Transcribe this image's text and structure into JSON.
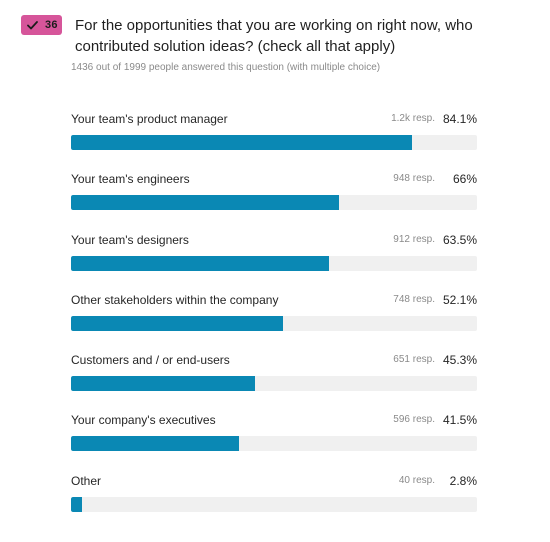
{
  "badge": {
    "count": "36",
    "icon": "check-icon",
    "color": "#d6559a"
  },
  "question": {
    "text": "For the opportunities that you are working on right now, who contributed solution ideas? (check all that apply)"
  },
  "summary": {
    "text": "1436 out of 1999 people answered this question (with multiple choice)"
  },
  "colors": {
    "bar": "#0a88b4",
    "track": "#f0f0f0"
  },
  "chart_data": {
    "type": "bar",
    "orientation": "horizontal",
    "categories": [
      "Your team's product manager",
      "Your team's engineers",
      "Your team's designers",
      "Other stakeholders within the company",
      "Customers and / or end-users",
      "Your company's executives",
      "Other"
    ],
    "responses": [
      "1.2k resp.",
      "948 resp.",
      "912 resp.",
      "748 resp.",
      "651 resp.",
      "596 resp.",
      "40 resp."
    ],
    "percent_labels": [
      "84.1%",
      "66%",
      "63.5%",
      "52.1%",
      "45.3%",
      "41.5%",
      "2.8%"
    ],
    "values": [
      84.1,
      66,
      63.5,
      52.1,
      45.3,
      41.5,
      2.8
    ],
    "xlim": [
      0,
      100
    ]
  }
}
